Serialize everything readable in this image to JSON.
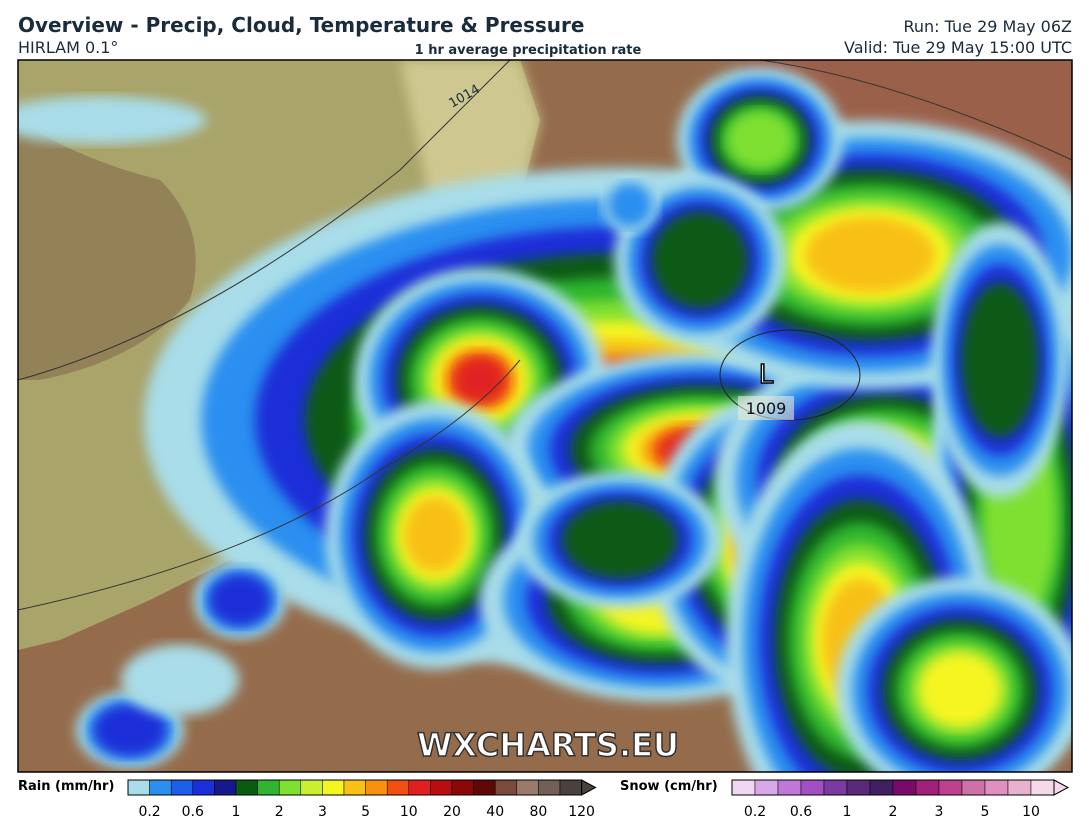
{
  "header": {
    "title": "Overview - Precip, Cloud, Temperature & Pressure",
    "model": "HIRLAM 0.1°",
    "field": "1 hr average precipitation rate",
    "run": "Run: Tue 29 May 06Z",
    "valid": "Valid: Tue 29 May 15:00 UTC"
  },
  "map": {
    "isobar_label": "1014",
    "low_marker": "L",
    "low_pressure": "1009",
    "watermark": "WXCHARTS.EU"
  },
  "rain_legend": {
    "title": "Rain (mm/hr)",
    "ticks": [
      "0.2",
      "0.6",
      "1",
      "2",
      "3",
      "5",
      "10",
      "20",
      "40",
      "80",
      "120"
    ],
    "colors": [
      "#a9dde9",
      "#2b8ff0",
      "#1e5ee8",
      "#1b2fd8",
      "#141a8c",
      "#0a5a14",
      "#2fb52f",
      "#7fe030",
      "#c8f030",
      "#f5f520",
      "#f8c018",
      "#f89010",
      "#f05010",
      "#e02020",
      "#b80e10",
      "#8c0808",
      "#600808",
      "#7a4a3a",
      "#9a7a6a",
      "#706058",
      "#4a4040"
    ]
  },
  "snow_legend": {
    "title": "Snow (cm/hr)",
    "ticks": [
      "0.2",
      "0.6",
      "1",
      "2",
      "3",
      "5",
      "10"
    ],
    "colors": [
      "#f0d8f0",
      "#d8a8e8",
      "#c078d8",
      "#a050c0",
      "#7a3aa0",
      "#5a2a7a",
      "#402060",
      "#7a0a6a",
      "#a0207a",
      "#c04090",
      "#d070a8",
      "#e090c0",
      "#eab0d0",
      "#f5d8ea"
    ]
  }
}
